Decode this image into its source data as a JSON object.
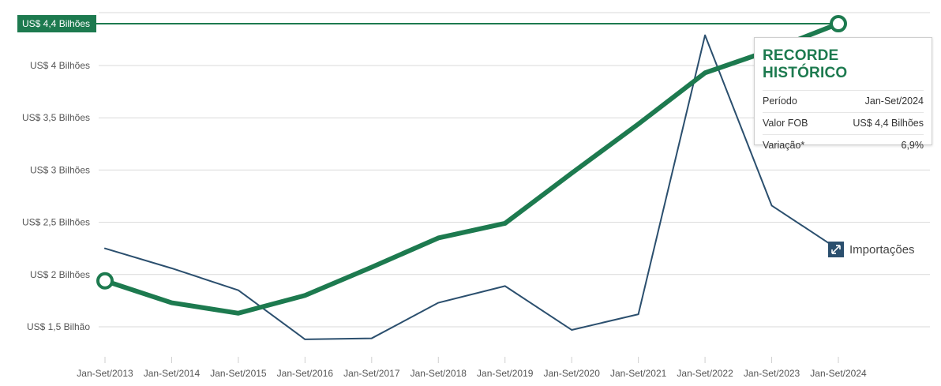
{
  "chart_data": {
    "type": "line",
    "categories": [
      "Jan-Set/2013",
      "Jan-Set/2014",
      "Jan-Set/2015",
      "Jan-Set/2016",
      "Jan-Set/2017",
      "Jan-Set/2018",
      "Jan-Set/2019",
      "Jan-Set/2020",
      "Jan-Set/2021",
      "Jan-Set/2022",
      "Jan-Set/2023",
      "Jan-Set/2024"
    ],
    "y_tick_labels": [
      "US$ 1,5 Bilhão",
      "US$ 2 Bilhões",
      "US$ 2,5 Bilhões",
      "US$ 3 Bilhões",
      "US$ 3,5 Bilhões",
      "US$ 4 Bilhões"
    ],
    "y_ticks": [
      1.5,
      2,
      2.5,
      3,
      3.5,
      4
    ],
    "ylim": [
      1.4,
      4.5
    ],
    "y_unit": "US$ bilhões",
    "grid": true,
    "series": [
      {
        "values": [
          1.94,
          1.73,
          1.63,
          1.8,
          2.07,
          2.35,
          2.49,
          2.97,
          3.44,
          3.93,
          4.15,
          4.4
        ],
        "color": "#1d7a4f",
        "emphasis": "thick",
        "markers": [
          "first",
          "last"
        ]
      },
      {
        "name": "Importações",
        "values": [
          2.25,
          2.06,
          1.85,
          1.38,
          1.39,
          1.73,
          1.89,
          1.47,
          1.62,
          4.29,
          2.66,
          2.24
        ],
        "color": "#2b4f6e"
      }
    ],
    "highlight_line": {
      "value": 4.4,
      "label": "US$ 4,4 Bilhões",
      "color": "#1d7a4f"
    },
    "legend": {
      "label": "Importações",
      "placement": "right of last point",
      "color": "#2b4f6e"
    }
  },
  "record_box": {
    "title": "RECORDE HISTÓRICO",
    "rows": [
      {
        "label": "Período",
        "value": "Jan-Set/2024"
      },
      {
        "label": "Valor FOB",
        "value": "US$ 4,4 Bilhões"
      },
      {
        "label": "Variação*",
        "value": "6,9%"
      }
    ]
  }
}
